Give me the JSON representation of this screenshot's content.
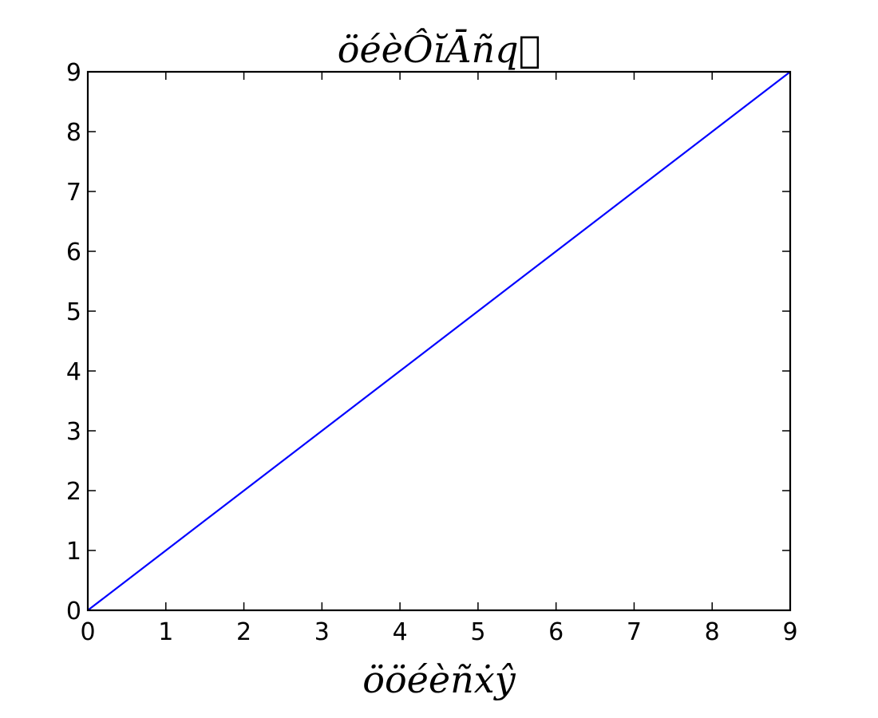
{
  "chart_data": {
    "type": "line",
    "title": "öéèÔĭĀñq⃗",
    "xlabel": "ööéèñẋŷ",
    "ylabel": "",
    "xlim": [
      0,
      9
    ],
    "ylim": [
      0,
      9
    ],
    "x_ticks": [
      "0",
      "1",
      "2",
      "3",
      "4",
      "5",
      "6",
      "7",
      "8",
      "9"
    ],
    "y_ticks": [
      "0",
      "1",
      "2",
      "3",
      "4",
      "5",
      "6",
      "7",
      "8",
      "9"
    ],
    "grid": false,
    "series": [
      {
        "x": [
          0,
          1,
          2,
          3,
          4,
          5,
          6,
          7,
          8,
          9
        ],
        "y": [
          0,
          1,
          2,
          3,
          4,
          5,
          6,
          7,
          8,
          9
        ],
        "color": "#0000ff"
      }
    ]
  }
}
